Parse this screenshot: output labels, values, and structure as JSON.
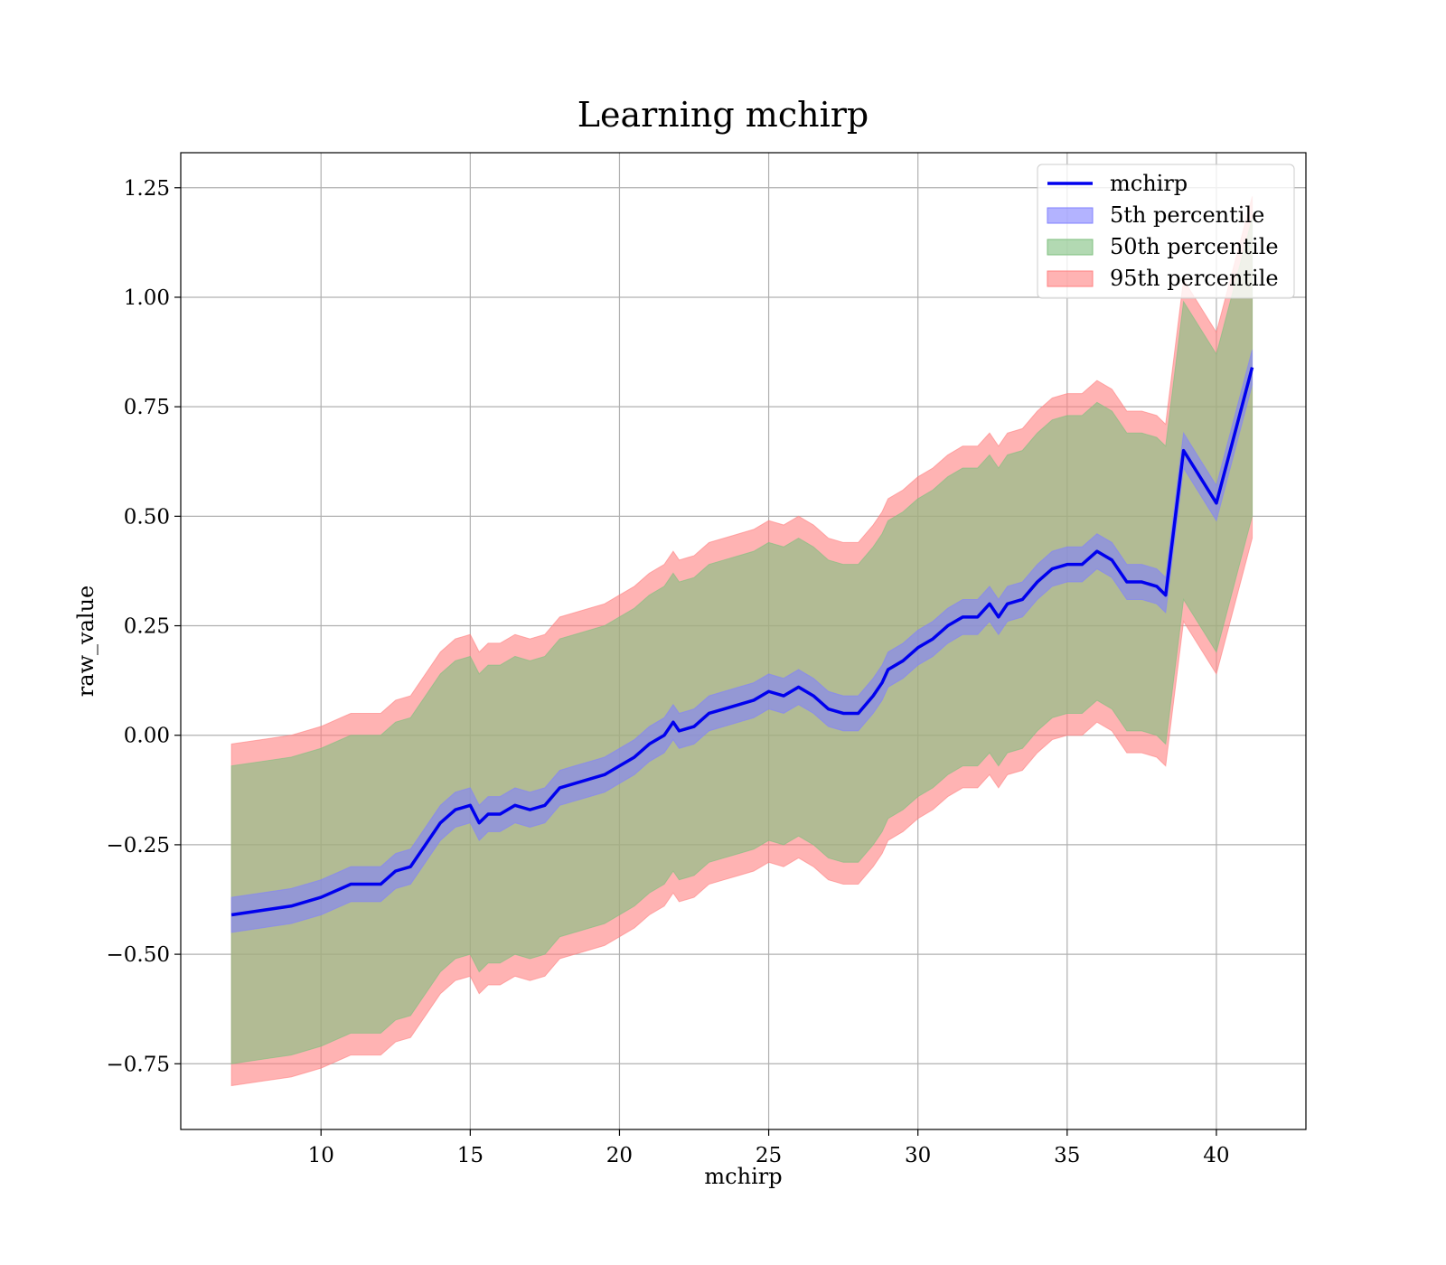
{
  "chart_data": {
    "type": "line",
    "title": "Learning mchirp",
    "xlabel": "mchirp",
    "ylabel": "raw_value",
    "xlim": [
      5.3,
      43.0
    ],
    "ylim": [
      -0.9,
      1.33
    ],
    "xticks": [
      10,
      15,
      20,
      25,
      30,
      35,
      40
    ],
    "yticks": [
      -0.75,
      -0.5,
      -0.25,
      0.0,
      0.25,
      0.5,
      0.75,
      1.0,
      1.25
    ],
    "grid": true,
    "legend_position": "top-right",
    "x": [
      7.0,
      8.0,
      9.0,
      10.0,
      11.0,
      12.0,
      12.5,
      13.0,
      13.5,
      14.0,
      14.5,
      15.0,
      15.3,
      15.6,
      16.0,
      16.5,
      17.0,
      17.5,
      18.0,
      18.5,
      19.0,
      19.5,
      20.0,
      20.5,
      21.0,
      21.5,
      21.8,
      22.0,
      22.5,
      23.0,
      23.5,
      24.0,
      24.5,
      25.0,
      25.5,
      26.0,
      26.5,
      27.0,
      27.5,
      28.0,
      28.5,
      28.8,
      29.0,
      29.5,
      30.0,
      30.5,
      31.0,
      31.5,
      32.0,
      32.4,
      32.7,
      33.0,
      33.5,
      34.0,
      34.5,
      35.0,
      35.5,
      36.0,
      36.5,
      37.0,
      37.5,
      38.0,
      38.3,
      38.9,
      40.0,
      41.2
    ],
    "series": [
      {
        "name": "mchirp",
        "color": "#0000ee",
        "values": [
          -0.41,
          -0.4,
          -0.39,
          -0.37,
          -0.34,
          -0.34,
          -0.31,
          -0.3,
          -0.25,
          -0.2,
          -0.17,
          -0.16,
          -0.2,
          -0.18,
          -0.18,
          -0.16,
          -0.17,
          -0.16,
          -0.12,
          -0.11,
          -0.1,
          -0.09,
          -0.07,
          -0.05,
          -0.02,
          0.0,
          0.03,
          0.01,
          0.02,
          0.05,
          0.06,
          0.07,
          0.08,
          0.1,
          0.09,
          0.11,
          0.09,
          0.06,
          0.05,
          0.05,
          0.09,
          0.12,
          0.15,
          0.17,
          0.2,
          0.22,
          0.25,
          0.27,
          0.27,
          0.3,
          0.27,
          0.3,
          0.31,
          0.35,
          0.38,
          0.39,
          0.39,
          0.42,
          0.4,
          0.35,
          0.35,
          0.34,
          0.32,
          0.65,
          0.53,
          0.84
        ]
      },
      {
        "name": "5th percentile",
        "color": "#8080ff",
        "lower": [
          -0.45,
          -0.44,
          -0.43,
          -0.41,
          -0.38,
          -0.38,
          -0.35,
          -0.34,
          -0.29,
          -0.24,
          -0.21,
          -0.2,
          -0.24,
          -0.22,
          -0.22,
          -0.2,
          -0.21,
          -0.2,
          -0.16,
          -0.15,
          -0.14,
          -0.13,
          -0.11,
          -0.09,
          -0.06,
          -0.04,
          -0.01,
          -0.03,
          -0.02,
          0.01,
          0.02,
          0.03,
          0.04,
          0.06,
          0.05,
          0.07,
          0.05,
          0.02,
          0.01,
          0.01,
          0.05,
          0.08,
          0.11,
          0.13,
          0.16,
          0.18,
          0.21,
          0.23,
          0.23,
          0.26,
          0.23,
          0.26,
          0.27,
          0.31,
          0.34,
          0.35,
          0.35,
          0.38,
          0.36,
          0.31,
          0.31,
          0.3,
          0.28,
          0.61,
          0.49,
          0.8
        ],
        "upper": [
          -0.37,
          -0.36,
          -0.35,
          -0.33,
          -0.3,
          -0.3,
          -0.27,
          -0.26,
          -0.21,
          -0.16,
          -0.13,
          -0.12,
          -0.16,
          -0.14,
          -0.14,
          -0.12,
          -0.13,
          -0.12,
          -0.08,
          -0.07,
          -0.06,
          -0.05,
          -0.03,
          -0.01,
          0.02,
          0.04,
          0.07,
          0.05,
          0.06,
          0.09,
          0.1,
          0.11,
          0.12,
          0.14,
          0.13,
          0.15,
          0.13,
          0.1,
          0.09,
          0.09,
          0.13,
          0.16,
          0.19,
          0.21,
          0.24,
          0.26,
          0.29,
          0.31,
          0.31,
          0.34,
          0.31,
          0.34,
          0.35,
          0.39,
          0.42,
          0.43,
          0.43,
          0.46,
          0.44,
          0.39,
          0.39,
          0.38,
          0.36,
          0.69,
          0.57,
          0.88
        ]
      },
      {
        "name": "50th percentile",
        "color": "#7fbf7f",
        "lower": [
          -0.75,
          -0.74,
          -0.73,
          -0.71,
          -0.68,
          -0.68,
          -0.65,
          -0.64,
          -0.59,
          -0.54,
          -0.51,
          -0.5,
          -0.54,
          -0.52,
          -0.52,
          -0.5,
          -0.51,
          -0.5,
          -0.46,
          -0.45,
          -0.44,
          -0.43,
          -0.41,
          -0.39,
          -0.36,
          -0.34,
          -0.31,
          -0.33,
          -0.32,
          -0.29,
          -0.28,
          -0.27,
          -0.26,
          -0.24,
          -0.25,
          -0.23,
          -0.25,
          -0.28,
          -0.29,
          -0.29,
          -0.25,
          -0.22,
          -0.19,
          -0.17,
          -0.14,
          -0.12,
          -0.09,
          -0.07,
          -0.07,
          -0.04,
          -0.07,
          -0.04,
          -0.03,
          0.01,
          0.04,
          0.05,
          0.05,
          0.08,
          0.06,
          0.01,
          0.01,
          0.0,
          -0.02,
          0.31,
          0.19,
          0.5
        ],
        "upper": [
          -0.07,
          -0.06,
          -0.05,
          -0.03,
          0.0,
          0.0,
          0.03,
          0.04,
          0.09,
          0.14,
          0.17,
          0.18,
          0.14,
          0.16,
          0.16,
          0.18,
          0.17,
          0.18,
          0.22,
          0.23,
          0.24,
          0.25,
          0.27,
          0.29,
          0.32,
          0.34,
          0.37,
          0.35,
          0.36,
          0.39,
          0.4,
          0.41,
          0.42,
          0.44,
          0.43,
          0.45,
          0.43,
          0.4,
          0.39,
          0.39,
          0.43,
          0.46,
          0.49,
          0.51,
          0.54,
          0.56,
          0.59,
          0.61,
          0.61,
          0.64,
          0.61,
          0.64,
          0.65,
          0.69,
          0.72,
          0.73,
          0.73,
          0.76,
          0.74,
          0.69,
          0.69,
          0.68,
          0.66,
          0.99,
          0.87,
          1.18
        ]
      },
      {
        "name": "95th percentile",
        "color": "#ff8080",
        "lower": [
          -0.8,
          -0.79,
          -0.78,
          -0.76,
          -0.73,
          -0.73,
          -0.7,
          -0.69,
          -0.64,
          -0.59,
          -0.56,
          -0.55,
          -0.59,
          -0.57,
          -0.57,
          -0.55,
          -0.56,
          -0.55,
          -0.51,
          -0.5,
          -0.49,
          -0.48,
          -0.46,
          -0.44,
          -0.41,
          -0.39,
          -0.36,
          -0.38,
          -0.37,
          -0.34,
          -0.33,
          -0.32,
          -0.31,
          -0.29,
          -0.3,
          -0.28,
          -0.3,
          -0.33,
          -0.34,
          -0.34,
          -0.3,
          -0.27,
          -0.24,
          -0.22,
          -0.19,
          -0.17,
          -0.14,
          -0.12,
          -0.12,
          -0.09,
          -0.12,
          -0.09,
          -0.08,
          -0.04,
          -0.01,
          0.0,
          0.0,
          0.03,
          0.01,
          -0.04,
          -0.04,
          -0.05,
          -0.07,
          0.26,
          0.14,
          0.45
        ],
        "upper": [
          -0.02,
          -0.01,
          0.0,
          0.02,
          0.05,
          0.05,
          0.08,
          0.09,
          0.14,
          0.19,
          0.22,
          0.23,
          0.19,
          0.21,
          0.21,
          0.23,
          0.22,
          0.23,
          0.27,
          0.28,
          0.29,
          0.3,
          0.32,
          0.34,
          0.37,
          0.39,
          0.42,
          0.4,
          0.41,
          0.44,
          0.45,
          0.46,
          0.47,
          0.49,
          0.48,
          0.5,
          0.48,
          0.45,
          0.44,
          0.44,
          0.48,
          0.51,
          0.54,
          0.56,
          0.59,
          0.61,
          0.64,
          0.66,
          0.66,
          0.69,
          0.66,
          0.69,
          0.7,
          0.74,
          0.77,
          0.78,
          0.78,
          0.81,
          0.79,
          0.74,
          0.74,
          0.73,
          0.71,
          1.04,
          0.92,
          1.23
        ]
      }
    ]
  }
}
